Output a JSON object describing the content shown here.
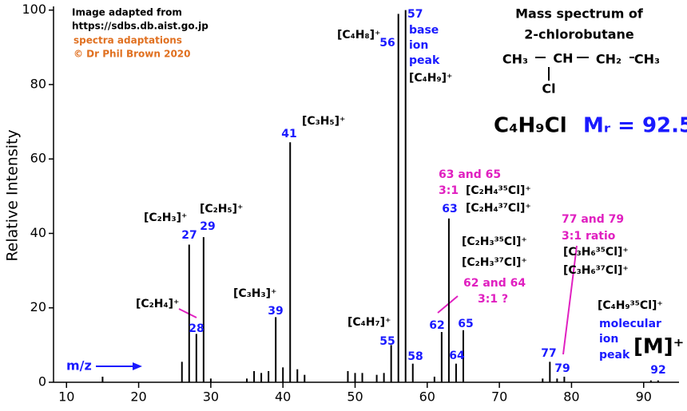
{
  "chart_data": {
    "type": "stem",
    "title": "Mass spectrum of",
    "subtitle": "2-chlorobutane",
    "y_label": "Relative Intensity",
    "x": [
      15,
      26,
      27,
      28,
      29,
      30,
      35,
      36,
      37,
      38,
      39,
      40,
      41,
      42,
      43,
      49,
      50,
      51,
      53,
      54,
      55,
      56,
      57,
      58,
      61,
      62,
      63,
      64,
      65,
      76,
      77,
      78,
      79,
      91,
      92
    ],
    "values": [
      1.5,
      5.5,
      37,
      13,
      39,
      1,
      1,
      3,
      2.5,
      3,
      17.5,
      4,
      64.5,
      3.5,
      2,
      3,
      2.5,
      2.5,
      2,
      2.5,
      10,
      99,
      100,
      5,
      1.5,
      13.5,
      44,
      5,
      14,
      1,
      5.5,
      1,
      1.5,
      0.5,
      0.5
    ],
    "color": "#000000",
    "label_color": "#1a1aff",
    "xlim": [
      8.2,
      94.9
    ],
    "ylim": [
      0,
      101
    ],
    "xticks": [
      10,
      20,
      30,
      40,
      50,
      60,
      70,
      80,
      90
    ],
    "yticks": [
      0,
      20,
      40,
      60,
      80,
      100
    ],
    "structure": {
      "groups": [
        "CH₃",
        "CH",
        "CH₂",
        "CH₃"
      ],
      "substituent": "Cl"
    },
    "formula": "C₄H₉Cl",
    "mr": "Mᵣ = 92.5",
    "molecular_ion": "[M]⁺",
    "annotations": [
      {
        "text": "Image adapted from",
        "color": "#000000"
      },
      {
        "text": "https://sdbs.db.aist.go.jp",
        "color": "#000000"
      },
      {
        "text": "spectra adaptations",
        "color": "#e07020"
      },
      {
        "text": "© Dr Phil Brown 2020",
        "color": "#e07020"
      },
      {
        "text": "[C₄H₈]⁺",
        "color": "#000000"
      },
      {
        "text": "base",
        "color": "#1a1aff"
      },
      {
        "text": "ion",
        "color": "#1a1aff"
      },
      {
        "text": "peak",
        "color": "#1a1aff"
      },
      {
        "text": "[C₄H₉]⁺",
        "color": "#000000"
      },
      {
        "text": "[C₃H₅]⁺",
        "color": "#000000"
      },
      {
        "text": "[C₂H₃]⁺",
        "color": "#000000"
      },
      {
        "text": "[C₂H₅]⁺",
        "color": "#000000"
      },
      {
        "text": "[C₃H₃]⁺",
        "color": "#000000"
      },
      {
        "text": "[C₂H₄]⁺",
        "color": "#000000"
      },
      {
        "text": "[C₄H₇]⁺",
        "color": "#000000"
      },
      {
        "text": "63 and 65",
        "color": "#e020c0"
      },
      {
        "text": "3:1",
        "color": "#e020c0"
      },
      {
        "text": "[C₂H₄³⁵Cl]⁺",
        "color": "#000000"
      },
      {
        "text": "[C₂H₄³⁷Cl]⁺",
        "color": "#000000"
      },
      {
        "text": "[C₂H₃³⁵Cl]⁺",
        "color": "#000000"
      },
      {
        "text": "[C₂H₃³⁷Cl]⁺",
        "color": "#000000"
      },
      {
        "text": "62 and 64",
        "color": "#e020c0"
      },
      {
        "text": "3:1 ?",
        "color": "#e020c0"
      },
      {
        "text": "77 and 79",
        "color": "#e020c0"
      },
      {
        "text": "3:1 ratio",
        "color": "#e020c0"
      },
      {
        "text": "[C₃H₆³⁵Cl]⁺",
        "color": "#000000"
      },
      {
        "text": "[C₃H₆³⁷Cl]⁺",
        "color": "#000000"
      },
      {
        "text": "[C₄H₉³⁵Cl]⁺",
        "color": "#000000"
      },
      {
        "text": "molecular",
        "color": "#1a1aff"
      },
      {
        "text": "ion",
        "color": "#1a1aff"
      },
      {
        "text": "peak",
        "color": "#1a1aff"
      },
      {
        "text": "m/z",
        "color": "#1a1aff"
      }
    ]
  }
}
